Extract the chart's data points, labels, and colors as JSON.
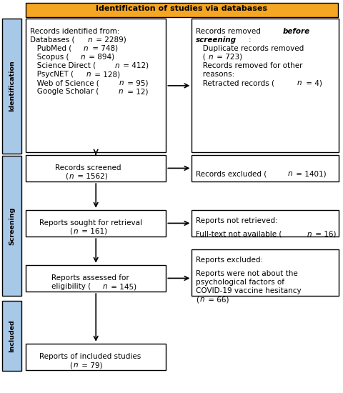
{
  "title": "Identification of studies via databases",
  "title_bg": "#F5A623",
  "sidebar_color": "#A8C8E8",
  "sidebar_labels": [
    "Identification",
    "Screening",
    "Included"
  ],
  "font_size": 7.5
}
